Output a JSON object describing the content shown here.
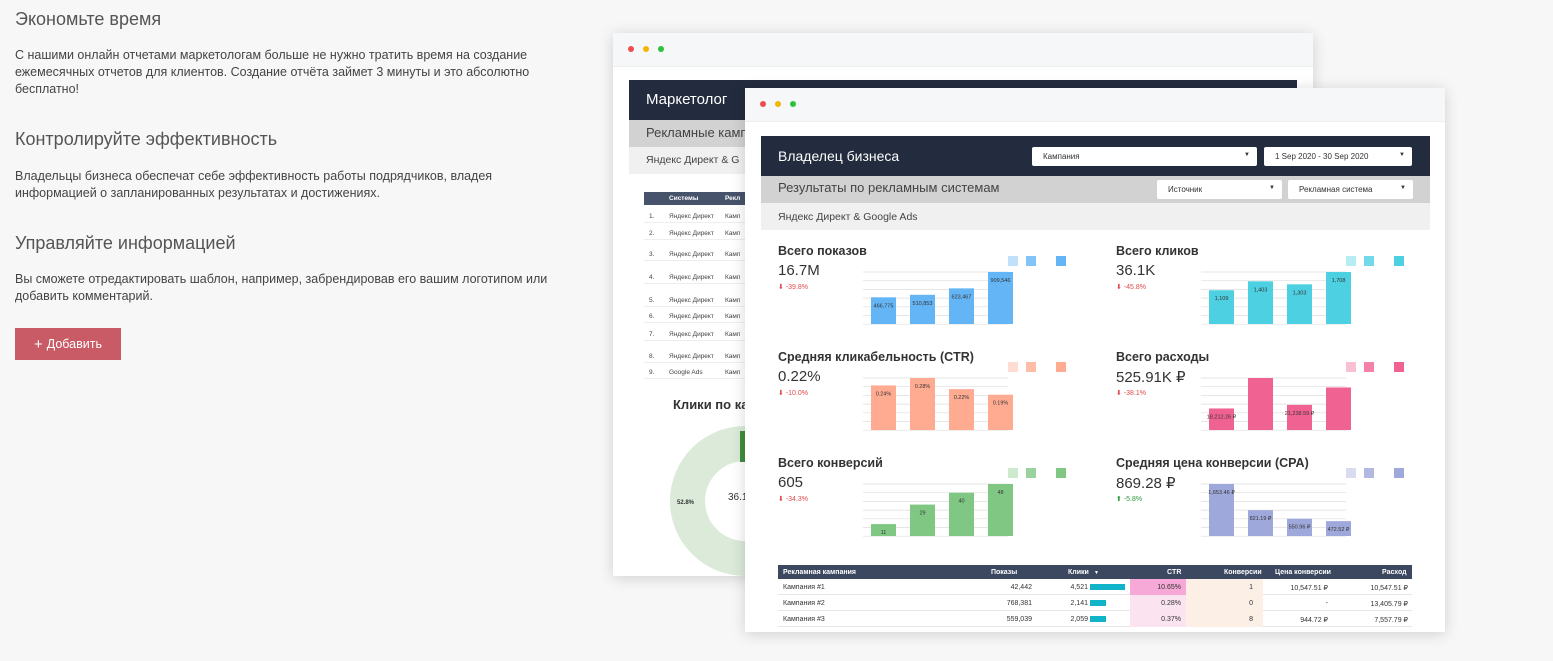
{
  "sections": [
    {
      "title": "Экономьте время",
      "text": "С нашими онлайн отчетами маркетологам больше не нужно тратить время на создание ежемесячных отчетов для клиентов. Создание отчёта займет 3 минуты и это абсолютно бесплатно!"
    },
    {
      "title": "Контролируйте эффективность",
      "text": "Владельцы бизнеса обеспечат себе эффективность работы подрядчиков, владея информацией о запланированных результатах и достижениях."
    },
    {
      "title": "Управляйте информацией",
      "text": "Вы сможете отредактировать шаблон, например, забрендировав его вашим логотипом или добавить комментарий."
    }
  ],
  "add_button": {
    "icon": "plus-icon",
    "label": "Добавить",
    "color": "#c95b66"
  },
  "back_report": {
    "title": "Маркетолог",
    "subtitle": "Рекламные камп",
    "filter_text": "Яндекс Директ & G",
    "table_headers": [
      "Системы",
      "Рекл"
    ],
    "table_rows": [
      {
        "n": "1.",
        "system": "Яндекс Директ",
        "camp": "Камп"
      },
      {
        "n": "2.",
        "system": "Яндекс Директ",
        "camp": "Камп"
      },
      {
        "n": "3.",
        "system": "Яндекс Директ",
        "camp": "Камп"
      },
      {
        "n": "4.",
        "system": "Яндекс Директ",
        "camp": "Камп"
      },
      {
        "n": "5.",
        "system": "Яндекс Директ",
        "camp": "Камп"
      },
      {
        "n": "6.",
        "system": "Яндекс Директ",
        "camp": "Камп"
      },
      {
        "n": "7.",
        "system": "Яндекс Директ",
        "camp": "Камп"
      },
      {
        "n": "8.",
        "system": "Яндекс Директ",
        "camp": "Камп"
      },
      {
        "n": "9.",
        "system": "Google Ads",
        "camp": "Камп"
      }
    ],
    "chart_title": "Клики по ка",
    "donut_value": "36.1",
    "donut_pct": "52.8%"
  },
  "front_report": {
    "title": "Владелец бизнеса",
    "campaign_dropdown": "Кампания",
    "date_dropdown": "1 Sep 2020 - 30 Sep 2020",
    "subtitle": "Результаты по рекламным системам",
    "source_dropdown": "Источник",
    "adsystem_dropdown": "Рекламная система",
    "filter_text": "Яндекс Директ & Google Ads",
    "table": {
      "headers": [
        "Рекламная кампания",
        "Показы",
        "Клики",
        "CTR",
        "Конверсии",
        "Цена конверсии",
        "Расход"
      ],
      "sort_icon": "sort-down-icon",
      "rows": [
        {
          "name": "Кампания #1",
          "shows": "42,442",
          "clicks": "4,521",
          "click_frac": 1.0,
          "ctr": "10.65%",
          "conv": "1",
          "cpa": "10,547.51 ₽",
          "spend": "10,547.51 ₽"
        },
        {
          "name": "Кампания #2",
          "shows": "768,381",
          "clicks": "2,141",
          "click_frac": 0.47,
          "ctr": "0.28%",
          "conv": "0",
          "cpa": "-",
          "spend": "13,405.79 ₽"
        },
        {
          "name": "Кампания #3",
          "shows": "559,039",
          "clicks": "2,059",
          "click_frac": 0.45,
          "ctr": "0.37%",
          "conv": "8",
          "cpa": "944.72 ₽",
          "spend": "7,557.79 ₽"
        }
      ]
    }
  },
  "chart_data": [
    {
      "type": "bar",
      "title": "Всего показов",
      "value": "16.7M",
      "delta": "-39.8%",
      "delta_dir": "down",
      "color": "#64b5f6",
      "values": [
        466775,
        510853,
        623467,
        909546
      ],
      "labels": [
        "466,775",
        "510,853",
        "623,467",
        "909,546"
      ]
    },
    {
      "type": "bar",
      "title": "Всего кликов",
      "value": "36.1K",
      "delta": "-45.8%",
      "delta_dir": "down",
      "color": "#4dd0e1",
      "values": [
        1109,
        1403,
        1303,
        1708
      ],
      "labels": [
        "1,109",
        "1,403",
        "1,303",
        "1,708"
      ]
    },
    {
      "type": "bar",
      "title": "Средняя кликабельность (CTR)",
      "value": "0.22%",
      "delta": "-10.0%",
      "delta_dir": "down",
      "color": "#ffab91",
      "values": [
        0.24,
        0.28,
        0.22,
        0.19
      ],
      "labels": [
        "0.24%",
        "0.28%",
        "0.22%",
        "0.19%"
      ]
    },
    {
      "type": "bar",
      "title": "Всего расходы",
      "value": "525.91K ₽",
      "delta": "-38.1%",
      "delta_dir": "down",
      "color": "#f06292",
      "values": [
        18212.26,
        44000,
        21238.59,
        36000
      ],
      "labels": [
        "18,212.26 ₽",
        "",
        "21,238.59 ₽",
        ""
      ]
    },
    {
      "type": "bar",
      "title": "Всего конверсий",
      "value": "605",
      "delta": "-34.3%",
      "delta_dir": "down",
      "color": "#81c784",
      "values": [
        11,
        29,
        40,
        48
      ],
      "labels": [
        "11",
        "29",
        "40",
        "48"
      ]
    },
    {
      "type": "bar",
      "title": "Средняя цена конверсии (CPA)",
      "value": "869.28 ₽",
      "delta": "-5.8%",
      "delta_dir": "up",
      "color": "#9fa8da",
      "values": [
        1653.46,
        821.19,
        550.96,
        472.52
      ],
      "labels": [
        "1,653.46 ₽",
        "821.19 ₽",
        "550.96 ₽",
        "472.52 ₽"
      ]
    }
  ]
}
